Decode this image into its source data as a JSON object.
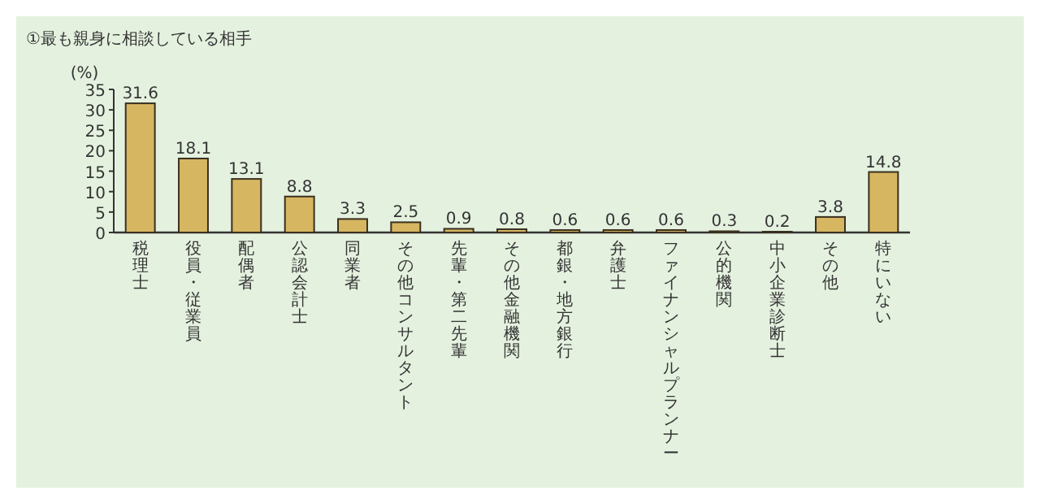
{
  "chart_data": {
    "type": "bar",
    "title": "①最も親身に相談している相手",
    "ylabel": "(%)",
    "categories": [
      "税理士",
      "役員・従業員",
      "配偶者",
      "公認会計士",
      "同業者",
      "その他コンサルタント",
      "先輩・第二先輩",
      "その他金融機関",
      "都銀・地方銀行",
      "弁護士",
      "ファイナンシャルプランナー",
      "公的機関",
      "中小企業診断士",
      "その他",
      "特にいない"
    ],
    "values": [
      31.6,
      18.1,
      13.1,
      8.8,
      3.3,
      2.5,
      0.9,
      0.8,
      0.6,
      0.6,
      0.6,
      0.3,
      0.2,
      3.8,
      14.8
    ],
    "color": "#d6b661",
    "ylim": [
      0,
      35
    ],
    "yticks": [
      0,
      5,
      10,
      15,
      20,
      25,
      30,
      35
    ],
    "data_labels": true
  }
}
